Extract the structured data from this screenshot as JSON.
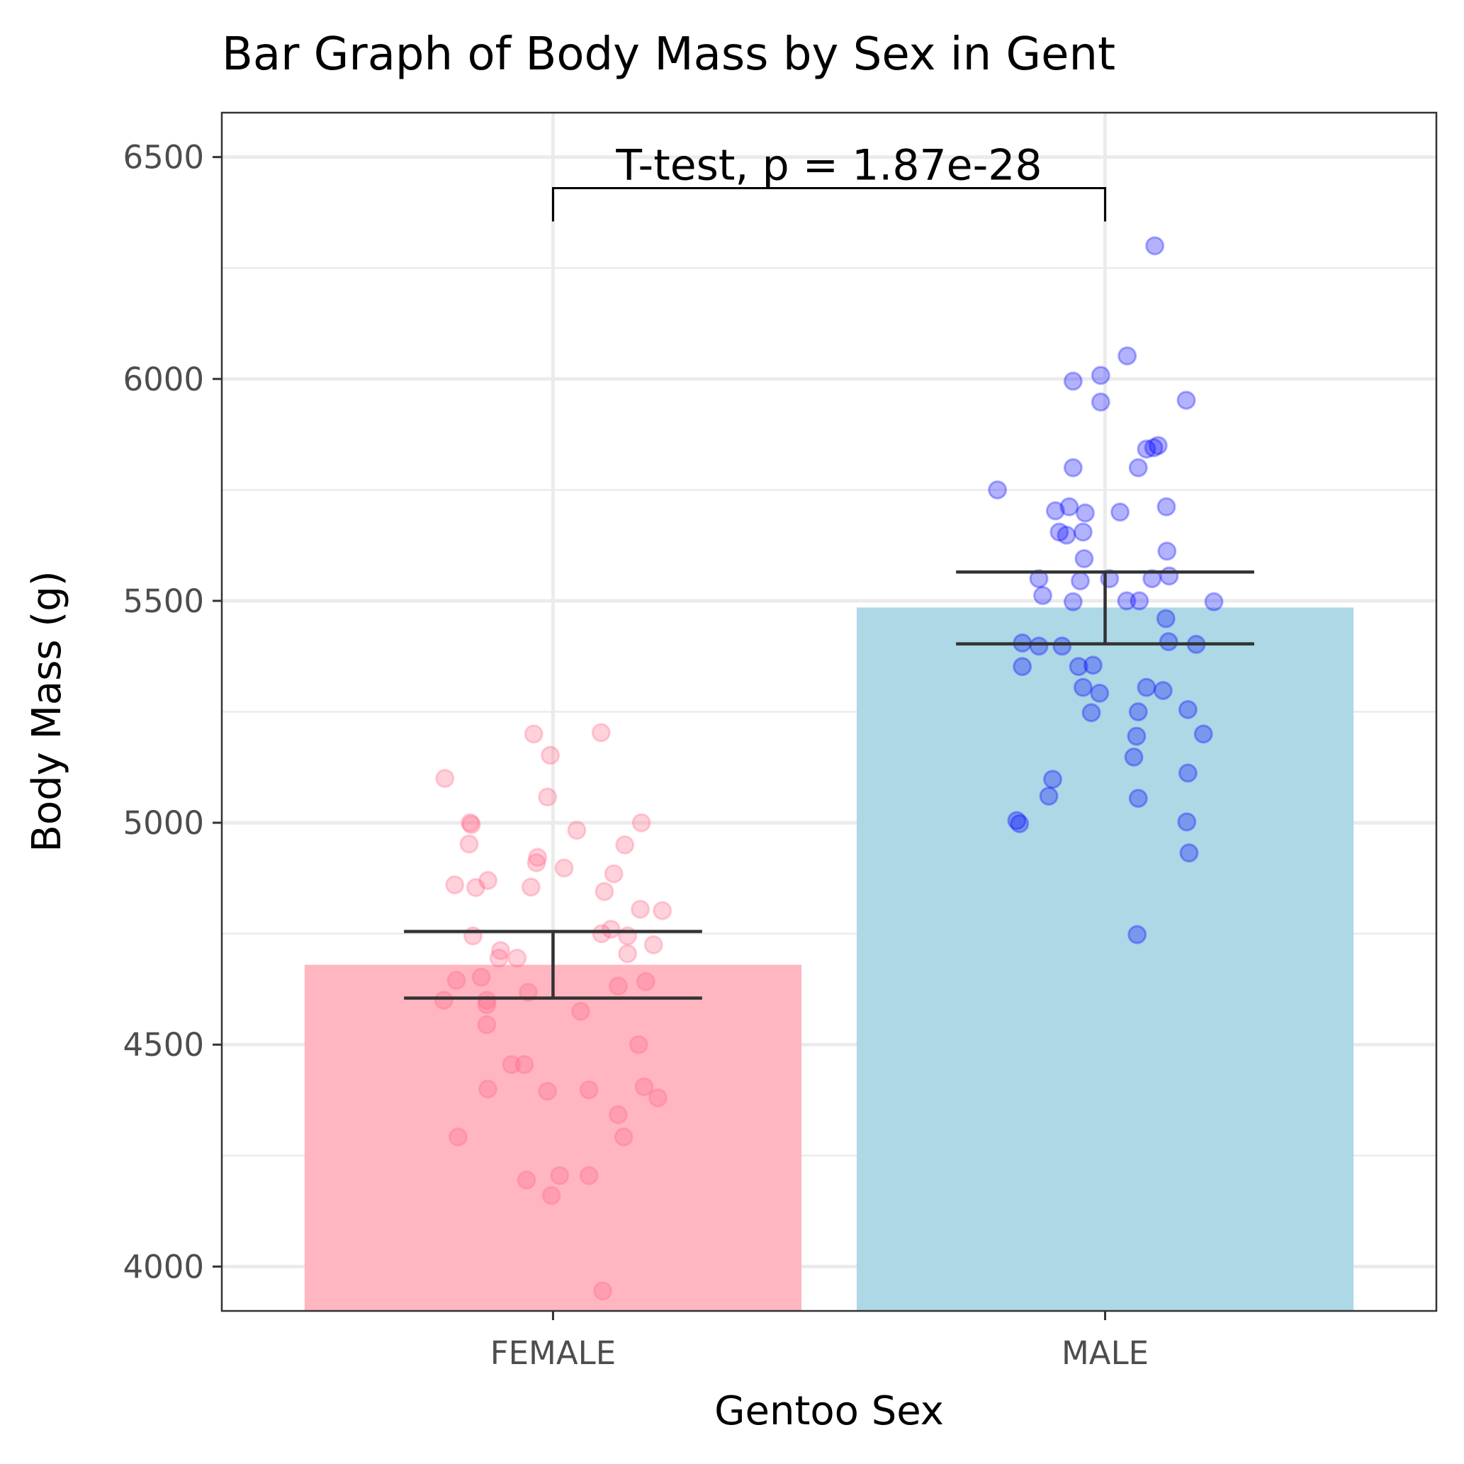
{
  "chart_data": {
    "type": "bar",
    "title": "Bar Graph of Body Mass by Sex in Gent",
    "xlabel": "Gentoo Sex",
    "ylabel": "Body Mass (g)",
    "ylim": [
      3900,
      6600
    ],
    "yticks": [
      4000,
      4500,
      5000,
      5500,
      6000,
      6500
    ],
    "grid": true,
    "categories": [
      "FEMALE",
      "MALE"
    ],
    "values": [
      4680,
      5485
    ],
    "error_bars": [
      {
        "low": 4605,
        "high": 4755
      },
      {
        "low": 5403,
        "high": 5565
      }
    ],
    "colors": {
      "FEMALE_bar": "#ffb6c1",
      "MALE_bar": "#add8e6",
      "FEMALE_points": "#ff6688",
      "MALE_points": "#0000ff",
      "error_bar": "#333333",
      "grid": "#ebebeb",
      "panel_border": "#333333"
    },
    "annotation": {
      "text": "T-test, p = 1.87e-28",
      "bracket_y": 6430,
      "bracket_drop_y": 6355,
      "between": [
        "FEMALE",
        "MALE"
      ]
    },
    "points": {
      "FEMALE": [
        [
          -0.196,
          5100
        ],
        [
          -0.15,
          5000
        ],
        [
          -0.148,
          4996
        ],
        [
          -0.152,
          4952
        ],
        [
          -0.178,
          4860
        ],
        [
          -0.14,
          4854
        ],
        [
          -0.118,
          4870
        ],
        [
          -0.145,
          4745
        ],
        [
          -0.095,
          4712
        ],
        [
          -0.098,
          4695
        ],
        [
          -0.065,
          4695
        ],
        [
          -0.035,
          5200
        ],
        [
          -0.005,
          5152
        ],
        [
          -0.01,
          5058
        ],
        [
          -0.028,
          4922
        ],
        [
          -0.03,
          4910
        ],
        [
          -0.04,
          4855
        ],
        [
          0.02,
          4898
        ],
        [
          0.043,
          4983
        ],
        [
          0.087,
          5203
        ],
        [
          0.13,
          4950
        ],
        [
          0.16,
          5000
        ],
        [
          0.11,
          4885
        ],
        [
          0.093,
          4845
        ],
        [
          0.158,
          4805
        ],
        [
          0.198,
          4802
        ],
        [
          0.088,
          4750
        ],
        [
          0.105,
          4760
        ],
        [
          0.135,
          4745
        ],
        [
          0.182,
          4725
        ],
        [
          0.135,
          4705
        ],
        [
          -0.13,
          4652
        ],
        [
          -0.175,
          4645
        ],
        [
          -0.045,
          4618
        ],
        [
          0.118,
          4632
        ],
        [
          0.168,
          4642
        ],
        [
          -0.198,
          4600
        ],
        [
          -0.12,
          4590
        ],
        [
          -0.12,
          4600
        ],
        [
          0.05,
          4575
        ],
        [
          -0.12,
          4545
        ],
        [
          -0.075,
          4455
        ],
        [
          -0.052,
          4455
        ],
        [
          0.155,
          4500
        ],
        [
          -0.118,
          4400
        ],
        [
          -0.01,
          4395
        ],
        [
          0.065,
          4398
        ],
        [
          0.165,
          4405
        ],
        [
          0.19,
          4380
        ],
        [
          0.118,
          4342
        ],
        [
          0.128,
          4292
        ],
        [
          -0.172,
          4292
        ],
        [
          -0.048,
          4195
        ],
        [
          0.012,
          4205
        ],
        [
          0.065,
          4205
        ],
        [
          -0.003,
          4160
        ],
        [
          0.09,
          3945
        ]
      ],
      "MALE": [
        [
          0.09,
          6300
        ],
        [
          0.04,
          6052
        ],
        [
          -0.008,
          6008
        ],
        [
          -0.058,
          5995
        ],
        [
          -0.008,
          5948
        ],
        [
          0.147,
          5952
        ],
        [
          0.075,
          5842
        ],
        [
          0.096,
          5850
        ],
        [
          0.088,
          5845
        ],
        [
          -0.058,
          5800
        ],
        [
          0.06,
          5800
        ],
        [
          -0.195,
          5750
        ],
        [
          0.111,
          5712
        ],
        [
          -0.065,
          5712
        ],
        [
          -0.09,
          5703
        ],
        [
          -0.036,
          5698
        ],
        [
          0.027,
          5700
        ],
        [
          -0.083,
          5655
        ],
        [
          -0.07,
          5648
        ],
        [
          -0.04,
          5655
        ],
        [
          -0.038,
          5595
        ],
        [
          0.112,
          5612
        ],
        [
          -0.12,
          5550
        ],
        [
          -0.045,
          5545
        ],
        [
          0.008,
          5550
        ],
        [
          0.085,
          5550
        ],
        [
          0.116,
          5556
        ],
        [
          -0.113,
          5512
        ],
        [
          -0.058,
          5498
        ],
        [
          0.039,
          5500
        ],
        [
          0.062,
          5500
        ],
        [
          0.197,
          5498
        ],
        [
          0.11,
          5460
        ],
        [
          -0.15,
          5405
        ],
        [
          -0.12,
          5398
        ],
        [
          -0.078,
          5398
        ],
        [
          0.115,
          5408
        ],
        [
          0.165,
          5402
        ],
        [
          -0.022,
          5355
        ],
        [
          -0.048,
          5352
        ],
        [
          -0.15,
          5352
        ],
        [
          -0.04,
          5305
        ],
        [
          -0.01,
          5292
        ],
        [
          0.075,
          5305
        ],
        [
          0.105,
          5298
        ],
        [
          0.06,
          5250
        ],
        [
          -0.025,
          5248
        ],
        [
          0.15,
          5255
        ],
        [
          0.178,
          5200
        ],
        [
          0.057,
          5195
        ],
        [
          0.052,
          5148
        ],
        [
          0.15,
          5112
        ],
        [
          -0.095,
          5098
        ],
        [
          -0.102,
          5060
        ],
        [
          0.06,
          5055
        ],
        [
          -0.16,
          5005
        ],
        [
          -0.155,
          4998
        ],
        [
          0.148,
          5002
        ],
        [
          0.152,
          4932
        ],
        [
          0.058,
          4748
        ]
      ]
    }
  }
}
